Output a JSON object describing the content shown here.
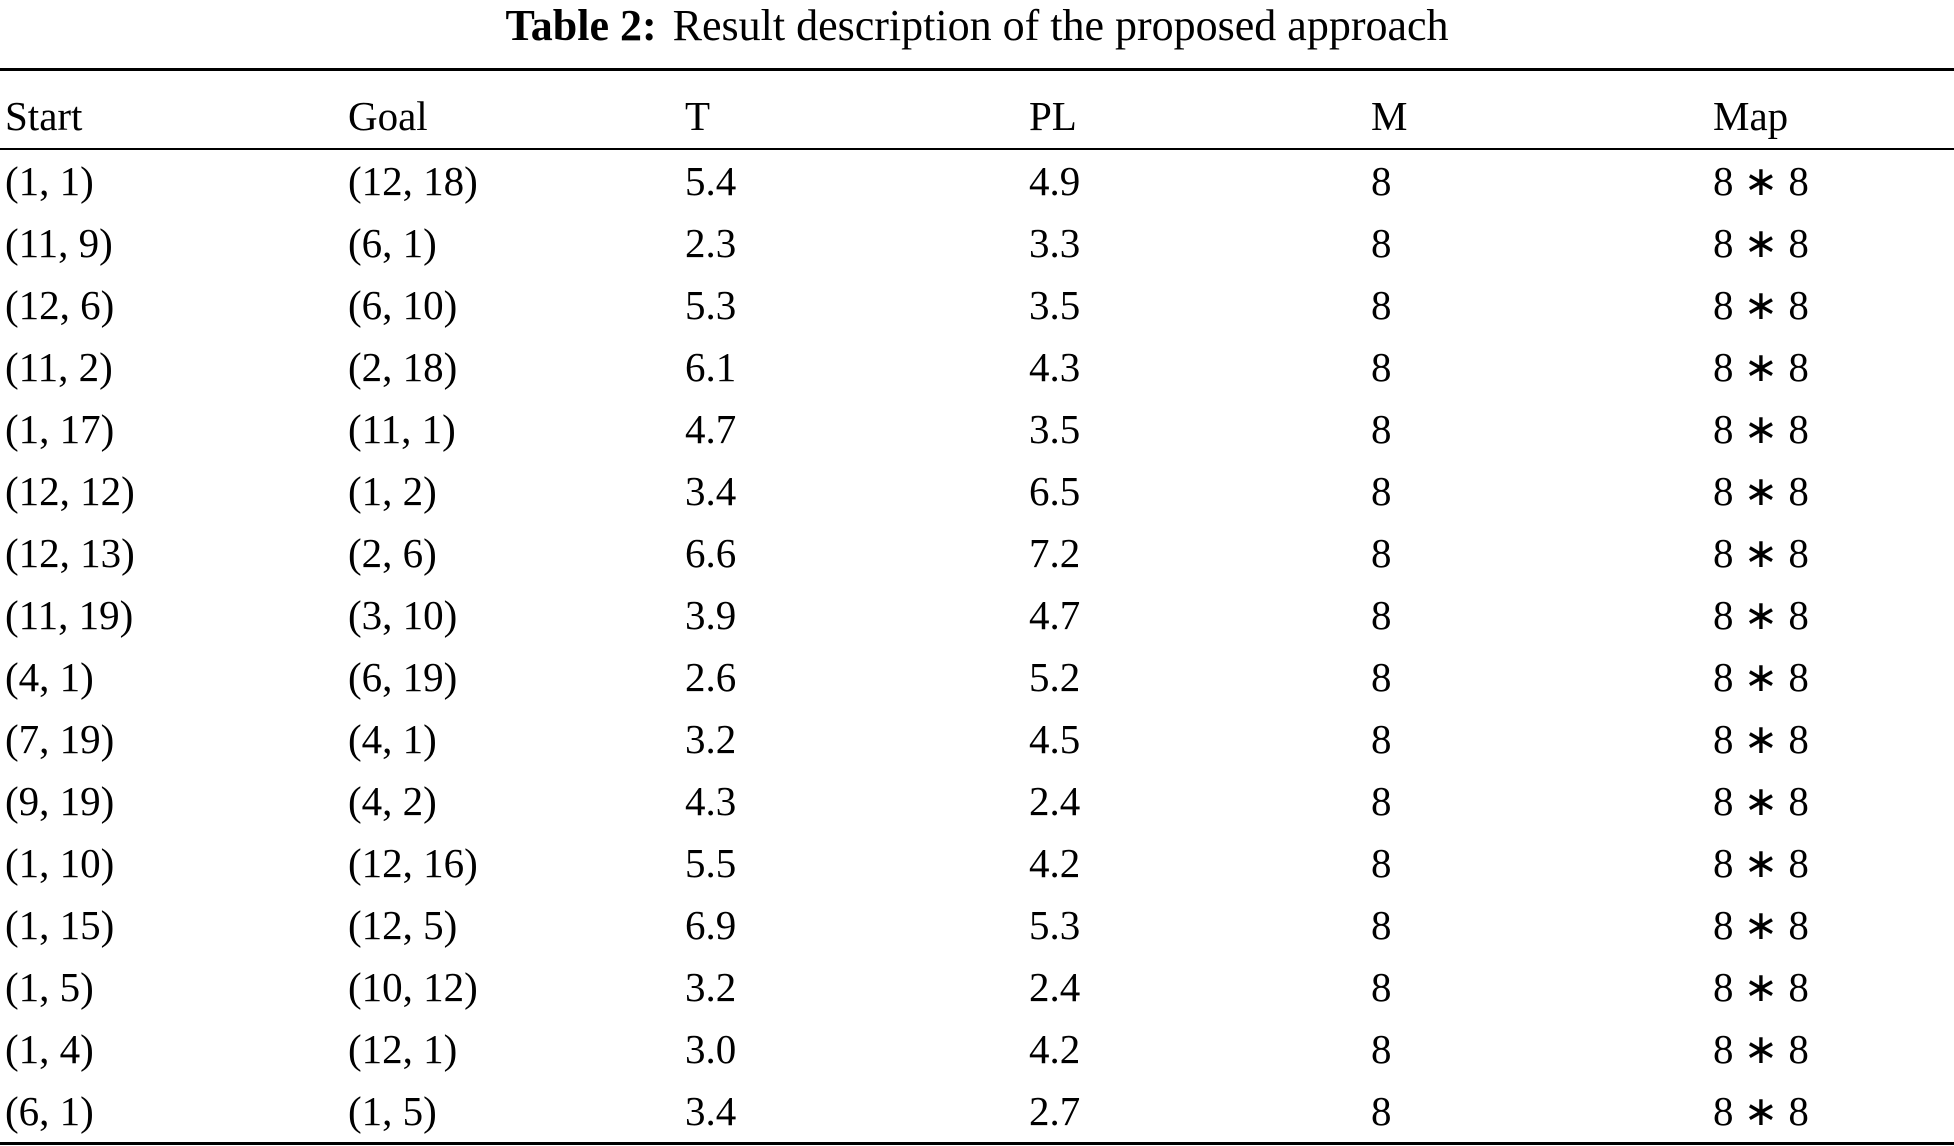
{
  "caption": {
    "label": "Table 2:",
    "text": "Result description of the proposed approach"
  },
  "table": {
    "columns": [
      "Start",
      "Goal",
      "T",
      "PL",
      "M",
      "Map"
    ],
    "rows": [
      [
        "(1, 1)",
        "(12, 18)",
        "5.4",
        "4.9",
        "8",
        "8 ∗ 8"
      ],
      [
        "(11, 9)",
        "(6, 1)",
        "2.3",
        "3.3",
        "8",
        "8 ∗ 8"
      ],
      [
        "(12, 6)",
        "(6, 10)",
        "5.3",
        "3.5",
        "8",
        "8 ∗ 8"
      ],
      [
        "(11, 2)",
        "(2, 18)",
        "6.1",
        "4.3",
        "8",
        "8 ∗ 8"
      ],
      [
        "(1, 17)",
        "(11, 1)",
        "4.7",
        "3.5",
        "8",
        "8 ∗ 8"
      ],
      [
        "(12, 12)",
        "(1, 2)",
        "3.4",
        "6.5",
        "8",
        "8 ∗ 8"
      ],
      [
        "(12, 13)",
        "(2, 6)",
        "6.6",
        "7.2",
        "8",
        "8 ∗ 8"
      ],
      [
        "(11, 19)",
        "(3, 10)",
        "3.9",
        "4.7",
        "8",
        "8 ∗ 8"
      ],
      [
        "(4, 1)",
        "(6, 19)",
        "2.6",
        "5.2",
        "8",
        "8 ∗ 8"
      ],
      [
        "(7, 19)",
        "(4, 1)",
        "3.2",
        "4.5",
        "8",
        "8 ∗ 8"
      ],
      [
        "(9, 19)",
        "(4, 2)",
        "4.3",
        "2.4",
        "8",
        "8 ∗ 8"
      ],
      [
        "(1, 10)",
        "(12, 16)",
        "5.5",
        "4.2",
        "8",
        "8 ∗ 8"
      ],
      [
        "(1, 15)",
        "(12, 5)",
        "6.9",
        "5.3",
        "8",
        "8 ∗ 8"
      ],
      [
        "(1, 5)",
        "(10, 12)",
        "3.2",
        "2.4",
        "8",
        "8 ∗ 8"
      ],
      [
        "(1, 4)",
        "(12, 1)",
        "3.0",
        "4.2",
        "8",
        "8 ∗ 8"
      ],
      [
        "(6, 1)",
        "(1, 5)",
        "3.4",
        "2.7",
        "8",
        "8 ∗ 8"
      ]
    ]
  }
}
